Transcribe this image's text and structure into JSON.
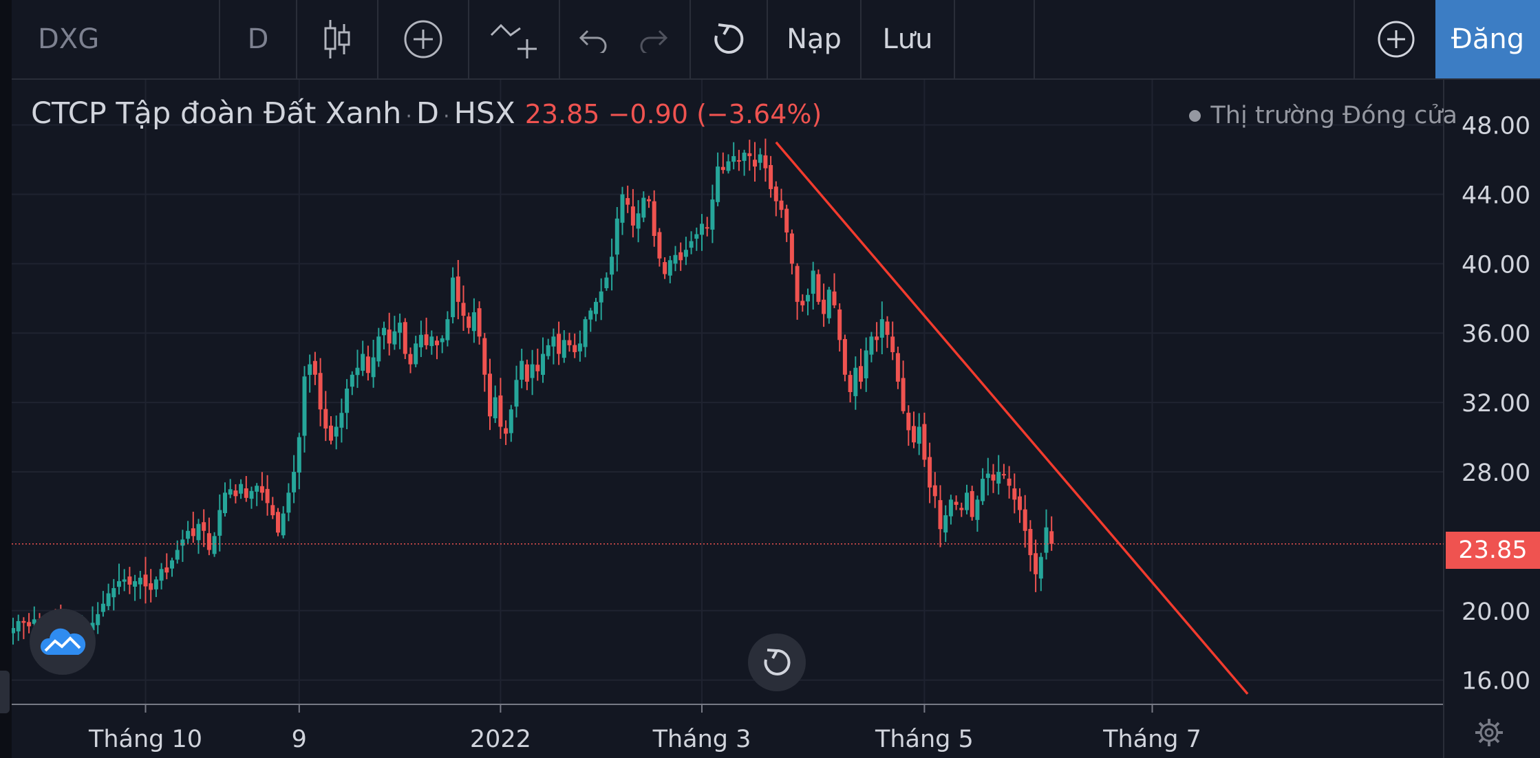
{
  "toolbar": {
    "symbol": "DXG",
    "interval": "D",
    "load_label": "Nạp",
    "save_label": "Lưu",
    "signup_label": "Đăng"
  },
  "legend": {
    "name": "CTCP Tập đoàn Đất Xanh",
    "interval": "D",
    "exchange": "HSX",
    "last": "23.85",
    "change": "−0.90 (−3.64%)",
    "market_status": "Thị trường Đóng cửa"
  },
  "colors": {
    "background": "#131722",
    "up": "#26a69a",
    "down": "#ef5350",
    "trendline": "#f23b2e",
    "grid": "#2a2e39",
    "accent": "#3c7dc4"
  },
  "icons": {
    "candles": "candlestick-icon",
    "add_indicator": "plus-circle-icon",
    "compare": "compare-plus-icon",
    "undo": "undo-icon",
    "redo": "redo-icon",
    "reset": "reset-icon",
    "add": "plus-circle-icon",
    "settings": "gear-icon",
    "logo": "tradingview-cloud-icon"
  },
  "chart_data": {
    "type": "candlestick",
    "title": "CTCP Tập đoàn Đất Xanh · D · HSX",
    "y_ticks": [
      "48.00",
      "44.00",
      "40.00",
      "36.00",
      "32.00",
      "28.00",
      "20.00",
      "16.00"
    ],
    "x_ticks": [
      "Tháng 10",
      "9",
      "2022",
      "Tháng 3",
      "Tháng 5",
      "Tháng 7"
    ],
    "ylim": [
      14.6,
      50.6
    ],
    "last_price": 23.85,
    "last_price_label": "23.85",
    "grid": true,
    "close_series": [
      19.0,
      19.4,
      19.3,
      19.1,
      19.5,
      19.2,
      18.8,
      19.6,
      19.8,
      19.3,
      19.0,
      18.9,
      18.7,
      18.9,
      19.0,
      19.3,
      19.8,
      20.4,
      21.0,
      21.3,
      21.7,
      21.8,
      21.5,
      21.7,
      21.9,
      21.4,
      21.2,
      21.8,
      22.4,
      22.2,
      22.9,
      23.5,
      24.1,
      24.6,
      24.3,
      25.0,
      24.6,
      23.5,
      24.3,
      25.8,
      26.8,
      27.0,
      26.6,
      27.3,
      26.5,
      26.9,
      27.2,
      26.8,
      26.2,
      25.5,
      24.5,
      25.6,
      26.8,
      28.0,
      30.0,
      33.5,
      34.2,
      33.6,
      31.6,
      30.5,
      29.8,
      30.6,
      31.4,
      32.8,
      33.6,
      34.0,
      34.8,
      33.7,
      34.6,
      35.8,
      36.3,
      35.4,
      36.1,
      36.6,
      34.8,
      34.2,
      35.4,
      35.9,
      35.3,
      35.8,
      35.3,
      35.7,
      36.8,
      39.2,
      37.8,
      37.0,
      36.3,
      37.2,
      35.8,
      33.6,
      31.2,
      32.3,
      30.6,
      30.2,
      31.6,
      33.3,
      34.4,
      33.2,
      34.2,
      33.8,
      34.8,
      35.3,
      35.8,
      34.8,
      35.6,
      35.3,
      34.9,
      35.4,
      36.8,
      37.3,
      37.8,
      38.4,
      39.2,
      40.4,
      42.6,
      44.0,
      43.4,
      42.2,
      42.9,
      43.8,
      43.6,
      41.6,
      40.3,
      39.4,
      40.2,
      40.5,
      40.2,
      40.8,
      41.3,
      41.7,
      42.3,
      42.1,
      43.7,
      45.6,
      45.4,
      45.9,
      46.2,
      45.9,
      46.4,
      46.2,
      45.6,
      46.3,
      45.5,
      44.3,
      43.6,
      43.1,
      41.8,
      40.0,
      37.8,
      37.6,
      38.2,
      39.6,
      37.8,
      37.1,
      38.5,
      37.6,
      35.6,
      33.6,
      32.6,
      34.0,
      33.2,
      35.0,
      35.8,
      35.6,
      36.8,
      35.9,
      34.9,
      33.2,
      31.5,
      30.4,
      29.7,
      30.6,
      28.7,
      27.1,
      26.6,
      24.7,
      25.5,
      26.4,
      26.1,
      25.8,
      26.8,
      25.4,
      26.4,
      27.6,
      27.9,
      27.5,
      28.0,
      27.8,
      27.2,
      26.4,
      25.8,
      24.6,
      23.2,
      22.1,
      23.1,
      24.8,
      23.85
    ],
    "trendline": {
      "from": {
        "index": 144,
        "price": 47.0
      },
      "to": {
        "index": 233,
        "price": 15.2
      }
    },
    "date_ticks_index": [
      25,
      54,
      92,
      130,
      172,
      215
    ]
  },
  "ui": {
    "rendered": ""
  }
}
